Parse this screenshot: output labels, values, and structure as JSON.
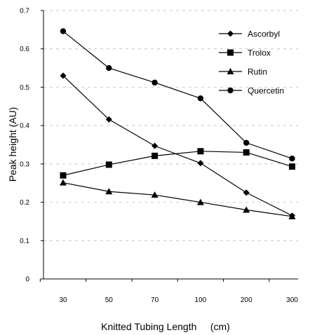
{
  "chart_data": {
    "type": "line",
    "categories": [
      "30",
      "50",
      "70",
      "100",
      "200",
      "300"
    ],
    "xlabel": "Knitted Tubing Length     (cm)",
    "ylabel": "Peak height (AU)",
    "ylim": [
      0,
      0.7
    ],
    "yticks": [
      "0",
      "0.1",
      "0.2",
      "0.3",
      "0.4",
      "0.5",
      "0.6",
      "0.7"
    ],
    "grid": "horizontal dashed",
    "legend_position": "top-right",
    "series": [
      {
        "name": "Ascorbyl",
        "marker": "diamond",
        "values": [
          0.53,
          0.416,
          0.347,
          0.302,
          0.225,
          0.165
        ]
      },
      {
        "name": "Trolox",
        "marker": "square",
        "values": [
          0.27,
          0.298,
          0.321,
          0.333,
          0.33,
          0.293
        ]
      },
      {
        "name": "Rutin",
        "marker": "triangle",
        "values": [
          0.251,
          0.228,
          0.219,
          0.2,
          0.18,
          0.163
        ]
      },
      {
        "name": "Quercetin",
        "marker": "circle",
        "values": [
          0.646,
          0.55,
          0.512,
          0.471,
          0.355,
          0.314
        ]
      }
    ]
  }
}
